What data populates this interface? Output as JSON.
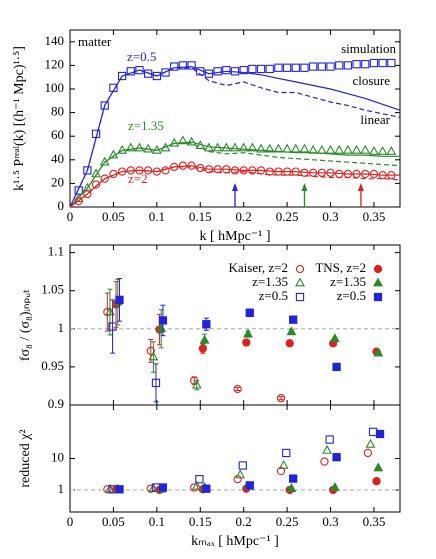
{
  "chart_data": [
    {
      "type": "line",
      "x_label": "k [ hMpc⁻¹ ]",
      "y_label": "k¹·⁵ Pʳᵉᵃˡ(k) [(h⁻¹ Mpc)¹·⁵]",
      "xlim": [
        0,
        0.38
      ],
      "xticks": [
        0,
        0.05,
        0.1,
        0.15,
        0.2,
        0.25,
        0.3,
        0.35
      ],
      "ylim": [
        0,
        150
      ],
      "yticks": [
        0,
        20,
        40,
        60,
        80,
        100,
        120,
        140
      ],
      "annotations": [
        "matter",
        "z=0.5",
        "simulation",
        "closure",
        "linear",
        "z=1.35",
        "z=2"
      ],
      "series": [
        {
          "color": "#2323d8",
          "marker": "square",
          "x": [
            0.01,
            0.02,
            0.03,
            0.04,
            0.05,
            0.06,
            0.07,
            0.08,
            0.09,
            0.1,
            0.11,
            0.12,
            0.13,
            0.14,
            0.15,
            0.16,
            0.17,
            0.18,
            0.19,
            0.2,
            0.21,
            0.22,
            0.23,
            0.24,
            0.25,
            0.26,
            0.27,
            0.28,
            0.29,
            0.3,
            0.31,
            0.32,
            0.33,
            0.34,
            0.35,
            0.36,
            0.37
          ],
          "values": [
            14,
            31,
            62,
            86,
            101,
            111,
            115,
            116,
            113,
            111,
            114,
            119,
            120,
            120,
            115,
            113,
            115,
            116,
            115,
            116,
            117,
            117,
            117,
            118,
            118,
            118,
            118,
            119,
            119,
            119,
            120,
            120,
            121,
            121,
            122,
            122,
            122
          ]
        },
        {
          "color": "#2323d8",
          "dash": false,
          "x": [
            0,
            0.02,
            0.04,
            0.06,
            0.08,
            0.1,
            0.12,
            0.14,
            0.16,
            0.18,
            0.2,
            0.22,
            0.24,
            0.26,
            0.28,
            0.3,
            0.32,
            0.34,
            0.36,
            0.38
          ],
          "values": [
            0,
            31,
            86,
            111,
            116,
            111,
            118,
            119,
            113,
            115,
            114,
            112,
            109,
            106,
            103,
            100,
            96,
            92,
            87,
            82
          ]
        },
        {
          "color": "#2323d8",
          "dash": true,
          "x": [
            0,
            0.02,
            0.04,
            0.06,
            0.08,
            0.1,
            0.12,
            0.14,
            0.16,
            0.18,
            0.2,
            0.22,
            0.24,
            0.26,
            0.28,
            0.3,
            0.32,
            0.34,
            0.36,
            0.38
          ],
          "values": [
            0,
            31,
            86,
            111,
            116,
            111,
            118,
            118,
            107,
            103,
            106,
            101,
            97,
            97,
            93,
            89,
            86,
            82,
            79,
            76
          ]
        },
        {
          "color": "#2a8a2a",
          "marker": "triangle",
          "x": [
            0.01,
            0.02,
            0.03,
            0.04,
            0.05,
            0.06,
            0.07,
            0.08,
            0.09,
            0.1,
            0.11,
            0.12,
            0.13,
            0.14,
            0.15,
            0.16,
            0.17,
            0.18,
            0.19,
            0.2,
            0.21,
            0.22,
            0.23,
            0.24,
            0.25,
            0.26,
            0.27,
            0.28,
            0.29,
            0.3,
            0.31,
            0.32,
            0.33,
            0.34,
            0.35,
            0.36,
            0.37
          ],
          "values": [
            7,
            16,
            28,
            38,
            44,
            48,
            50,
            50,
            49,
            48,
            50,
            54,
            56,
            55,
            52,
            50,
            50,
            50,
            50,
            50,
            50,
            49,
            49,
            49,
            49,
            49,
            49,
            48,
            48,
            48,
            48,
            48,
            48,
            48,
            47,
            47,
            47
          ]
        },
        {
          "color": "#2a8a2a",
          "dash": false,
          "x": [
            0,
            0.02,
            0.04,
            0.06,
            0.08,
            0.1,
            0.12,
            0.14,
            0.16,
            0.18,
            0.2,
            0.22,
            0.24,
            0.26,
            0.28,
            0.3,
            0.32,
            0.34,
            0.36,
            0.38
          ],
          "values": [
            0,
            16,
            38,
            48,
            50,
            48,
            54,
            55,
            51,
            50,
            49,
            48,
            47,
            46,
            46,
            45,
            44,
            44,
            43,
            43
          ]
        },
        {
          "color": "#2a8a2a",
          "dash": true,
          "x": [
            0,
            0.02,
            0.04,
            0.06,
            0.08,
            0.1,
            0.12,
            0.14,
            0.16,
            0.18,
            0.2,
            0.22,
            0.24,
            0.26,
            0.28,
            0.3,
            0.32,
            0.34,
            0.36,
            0.38
          ],
          "values": [
            0,
            16,
            38,
            48,
            50,
            48,
            54,
            54,
            47,
            45,
            46,
            44,
            42,
            41,
            40,
            39,
            38,
            37,
            36,
            35
          ]
        },
        {
          "color": "#e02020",
          "marker": "circle",
          "x": [
            0.01,
            0.02,
            0.03,
            0.04,
            0.05,
            0.06,
            0.07,
            0.08,
            0.09,
            0.1,
            0.11,
            0.12,
            0.13,
            0.14,
            0.15,
            0.16,
            0.17,
            0.18,
            0.19,
            0.2,
            0.21,
            0.22,
            0.23,
            0.24,
            0.25,
            0.26,
            0.27,
            0.28,
            0.29,
            0.3,
            0.31,
            0.32,
            0.33,
            0.34,
            0.35,
            0.36,
            0.37
          ],
          "values": [
            5,
            11,
            19,
            24,
            28,
            30,
            31,
            31,
            31,
            30,
            31,
            34,
            35,
            35,
            33,
            32,
            32,
            32,
            31,
            31,
            31,
            31,
            30,
            30,
            30,
            30,
            29,
            29,
            29,
            29,
            28,
            28,
            28,
            28,
            28,
            27,
            27
          ]
        },
        {
          "color": "#e02020",
          "dash": false,
          "x": [
            0,
            0.02,
            0.04,
            0.06,
            0.08,
            0.1,
            0.12,
            0.14,
            0.16,
            0.18,
            0.2,
            0.22,
            0.24,
            0.26,
            0.28,
            0.3,
            0.32,
            0.34,
            0.36,
            0.38
          ],
          "values": [
            0,
            11,
            24,
            30,
            31,
            30,
            34,
            35,
            32,
            32,
            31,
            31,
            30,
            30,
            29,
            29,
            28,
            28,
            27,
            27
          ]
        },
        {
          "color": "#e02020",
          "dash": true,
          "x": [
            0,
            0.02,
            0.04,
            0.06,
            0.08,
            0.1,
            0.12,
            0.14,
            0.16,
            0.18,
            0.2,
            0.22,
            0.24,
            0.26,
            0.28,
            0.3,
            0.32,
            0.34,
            0.36,
            0.38
          ],
          "values": [
            0,
            11,
            24,
            30,
            31,
            30,
            34,
            34,
            30,
            29,
            30,
            28,
            27,
            27,
            26,
            25,
            25,
            24,
            24,
            23
          ]
        }
      ],
      "arrows": [
        {
          "x": 0.19,
          "color": "#2323d8"
        },
        {
          "x": 0.27,
          "color": "#2a8a2a"
        },
        {
          "x": 0.335,
          "color": "#e02020"
        }
      ]
    },
    {
      "type": "scatter",
      "y_label": "fσ₈ / (σ₈)ᵢₙₚᵤₜ",
      "xlim": [
        0,
        0.38
      ],
      "xticks": [
        0,
        0.05,
        0.1,
        0.15,
        0.2,
        0.25,
        0.3,
        0.35
      ],
      "ylim": [
        0.9,
        1.11
      ],
      "yticks": [
        0.9,
        0.95,
        1,
        1.05,
        1.1
      ],
      "hline": 1,
      "legend": true,
      "series": [
        {
          "name": "Kaiser, z=2",
          "color": "#e02020",
          "marker": "circle",
          "filled": false,
          "x": [
            0.043,
            0.093,
            0.143,
            0.193,
            0.243
          ],
          "values": [
            1.022,
            0.971,
            0.932,
            0.921,
            0.909
          ],
          "errors": [
            0.025,
            0.015,
            0.005,
            0.002,
            0.002
          ]
        },
        {
          "name": "z=1.35",
          "color": "#2a8a2a",
          "marker": "triangle",
          "filled": false,
          "x": [
            0.046,
            0.096,
            0.146
          ],
          "values": [
            1.022,
            0.963,
            0.926
          ],
          "errors": [
            0.03,
            0.02,
            0.006
          ]
        },
        {
          "name": "z=0.5",
          "color": "#2323d8",
          "marker": "square",
          "filled": false,
          "x": [
            0.049,
            0.099
          ],
          "values": [
            1.003,
            0.929
          ],
          "errors": [
            0.035,
            0.025
          ]
        },
        {
          "name": "TNS, z=2",
          "color": "#e02020",
          "marker": "circle",
          "filled": true,
          "x": [
            0.053,
            0.103,
            0.153,
            0.203,
            0.253,
            0.303,
            0.353
          ],
          "values": [
            1.032,
            0.999,
            0.974,
            0.982,
            0.981,
            0.981,
            0.97
          ],
          "errors": [
            0.03,
            0.02,
            0.006,
            0.004,
            0.003,
            0.002,
            0.002
          ]
        },
        {
          "name": "z=1.35",
          "color": "#2a8a2a",
          "marker": "triangle",
          "filled": true,
          "x": [
            0.055,
            0.105,
            0.155,
            0.205,
            0.255,
            0.305,
            0.355
          ],
          "values": [
            1.035,
            1.0,
            0.985,
            0.993,
            0.996,
            0.987,
            0.968
          ],
          "errors": [
            0.03,
            0.025,
            0.008,
            0.004,
            0.003,
            0.002,
            0.002
          ]
        },
        {
          "name": "z=0.5",
          "color": "#2323d8",
          "marker": "square",
          "filled": true,
          "x": [
            0.057,
            0.107,
            0.157,
            0.207,
            0.257,
            0.307
          ],
          "values": [
            1.038,
            1.011,
            1.006,
            1.021,
            1.012,
            0.95
          ],
          "errors": [
            0.028,
            0.02,
            0.008,
            0.005,
            0.004,
            0.002
          ]
        }
      ]
    },
    {
      "type": "scatter",
      "x_label": "kₘₐₓ [ hMpc⁻¹ ]",
      "y_label": "reduced χ²",
      "xlim": [
        0,
        0.38
      ],
      "xticks": [
        0,
        0.05,
        0.1,
        0.15,
        0.2,
        0.25,
        0.3,
        0.35
      ],
      "ylim": [
        0.2,
        500
      ],
      "yticks": [
        1,
        10
      ],
      "log_y": true,
      "hline": 1,
      "series": [
        {
          "color": "#e02020",
          "marker": "circle",
          "filled": false,
          "x": [
            0.043,
            0.093,
            0.143,
            0.193,
            0.243,
            0.293,
            0.343
          ],
          "values": [
            1.05,
            1.1,
            1.2,
            2.2,
            4,
            8,
            15
          ]
        },
        {
          "color": "#2a8a2a",
          "marker": "triangle",
          "filled": false,
          "x": [
            0.046,
            0.096,
            0.146,
            0.196,
            0.246,
            0.296,
            0.346
          ],
          "values": [
            1.05,
            1.1,
            1.3,
            3,
            6,
            18,
            28
          ]
        },
        {
          "color": "#2323d8",
          "marker": "square",
          "filled": false,
          "x": [
            0.049,
            0.099,
            0.149,
            0.199,
            0.249,
            0.299,
            0.349
          ],
          "values": [
            1.05,
            1.2,
            2.2,
            6,
            15,
            40,
            70
          ]
        },
        {
          "color": "#e02020",
          "marker": "circle",
          "filled": true,
          "x": [
            0.053,
            0.103,
            0.153,
            0.203,
            0.253,
            0.303,
            0.353
          ],
          "values": [
            1.05,
            1.0,
            1.05,
            1.1,
            1.0,
            1.0,
            1.9
          ]
        },
        {
          "color": "#2a8a2a",
          "marker": "triangle",
          "filled": true,
          "x": [
            0.055,
            0.105,
            0.155,
            0.205,
            0.255,
            0.305,
            0.355
          ],
          "values": [
            1.05,
            1.05,
            1.2,
            1.3,
            1.1,
            1.2,
            5
          ]
        },
        {
          "color": "#2323d8",
          "marker": "square",
          "filled": true,
          "x": [
            0.057,
            0.107,
            0.157,
            0.207,
            0.257,
            0.307,
            0.357
          ],
          "values": [
            1.05,
            1.2,
            1.1,
            1.4,
            2.3,
            11,
            60
          ]
        }
      ]
    }
  ]
}
